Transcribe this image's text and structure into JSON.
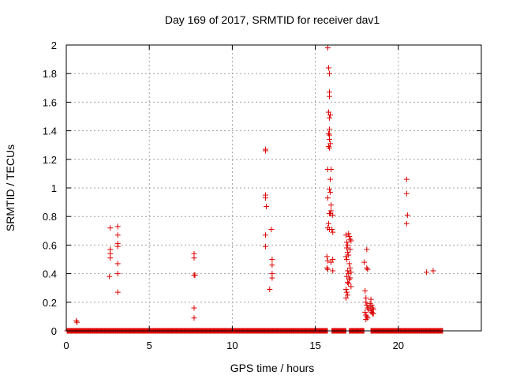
{
  "chart_data": {
    "type": "scatter",
    "title": "Day 169 of 2017, SRMTID for receiver dav1",
    "xlabel": "GPS time / hours",
    "ylabel": "SRMTID / TECUs",
    "xlim": [
      0,
      25
    ],
    "ylim": [
      0,
      2
    ],
    "xticks": [
      0,
      5,
      10,
      15,
      20
    ],
    "xtick_labels": [
      "0",
      "5",
      "10",
      "15",
      "20"
    ],
    "yticks": [
      0,
      0.2,
      0.4,
      0.6,
      0.8,
      1,
      1.2,
      1.4,
      1.6,
      1.8,
      2
    ],
    "ytick_labels": [
      "0",
      "0.2",
      "0.4",
      "0.6",
      "0.8",
      "1",
      "1.2",
      "1.4",
      "1.6",
      "1.8",
      "2"
    ],
    "grid": true,
    "marker": "+",
    "marker_color": "#dd0000",
    "baseline_segments": [
      [
        0.05,
        15.75
      ],
      [
        16.0,
        16.85
      ],
      [
        17.05,
        17.95
      ],
      [
        18.35,
        22.7
      ]
    ],
    "baseline_step": 0.04,
    "points": [
      [
        0.6,
        0.07
      ],
      [
        0.65,
        0.06
      ],
      [
        2.65,
        0.72
      ],
      [
        2.65,
        0.57
      ],
      [
        2.65,
        0.54
      ],
      [
        2.65,
        0.51
      ],
      [
        2.6,
        0.38
      ],
      [
        3.1,
        0.73
      ],
      [
        3.1,
        0.67
      ],
      [
        3.1,
        0.61
      ],
      [
        3.1,
        0.59
      ],
      [
        3.1,
        0.47
      ],
      [
        3.1,
        0.4
      ],
      [
        3.1,
        0.27
      ],
      [
        7.7,
        0.54
      ],
      [
        7.7,
        0.51
      ],
      [
        7.7,
        0.39
      ],
      [
        7.75,
        0.39
      ],
      [
        7.7,
        0.16
      ],
      [
        7.7,
        0.09
      ],
      [
        12.0,
        1.27
      ],
      [
        12.0,
        1.26
      ],
      [
        12.0,
        0.95
      ],
      [
        12.0,
        0.93
      ],
      [
        12.05,
        0.87
      ],
      [
        12.0,
        0.67
      ],
      [
        12.0,
        0.59
      ],
      [
        12.35,
        0.71
      ],
      [
        12.4,
        0.5
      ],
      [
        12.4,
        0.46
      ],
      [
        12.4,
        0.4
      ],
      [
        12.4,
        0.37
      ],
      [
        12.25,
        0.29
      ],
      [
        15.75,
        1.98
      ],
      [
        15.8,
        1.84
      ],
      [
        15.85,
        1.8
      ],
      [
        15.85,
        1.67
      ],
      [
        15.85,
        1.64
      ],
      [
        15.8,
        1.53
      ],
      [
        15.9,
        1.51
      ],
      [
        15.85,
        1.49
      ],
      [
        15.85,
        1.41
      ],
      [
        15.8,
        1.38
      ],
      [
        15.85,
        1.37
      ],
      [
        15.85,
        1.34
      ],
      [
        15.9,
        1.31
      ],
      [
        15.8,
        1.29
      ],
      [
        15.85,
        1.28
      ],
      [
        15.75,
        1.13
      ],
      [
        15.95,
        1.13
      ],
      [
        15.9,
        1.06
      ],
      [
        15.85,
        0.99
      ],
      [
        15.9,
        0.97
      ],
      [
        15.75,
        0.93
      ],
      [
        15.95,
        0.88
      ],
      [
        15.95,
        0.84
      ],
      [
        15.9,
        0.82
      ],
      [
        15.85,
        0.82
      ],
      [
        16.05,
        0.81
      ],
      [
        15.8,
        0.75
      ],
      [
        15.75,
        0.72
      ],
      [
        15.85,
        0.71
      ],
      [
        16.0,
        0.71
      ],
      [
        16.05,
        0.69
      ],
      [
        15.7,
        0.52
      ],
      [
        15.75,
        0.49
      ],
      [
        15.95,
        0.48
      ],
      [
        16.05,
        0.5
      ],
      [
        15.7,
        0.44
      ],
      [
        15.75,
        0.43
      ],
      [
        16.05,
        0.42
      ],
      [
        16.85,
        0.67
      ],
      [
        16.9,
        0.62
      ],
      [
        16.95,
        0.6
      ],
      [
        17.0,
        0.68
      ],
      [
        17.05,
        0.66
      ],
      [
        17.1,
        0.64
      ],
      [
        17.15,
        0.63
      ],
      [
        16.9,
        0.58
      ],
      [
        17.1,
        0.57
      ],
      [
        16.95,
        0.55
      ],
      [
        17.0,
        0.53
      ],
      [
        16.85,
        0.52
      ],
      [
        16.9,
        0.5
      ],
      [
        17.05,
        0.47
      ],
      [
        17.1,
        0.44
      ],
      [
        16.95,
        0.42
      ],
      [
        17.0,
        0.4
      ],
      [
        16.9,
        0.38
      ],
      [
        17.05,
        0.36
      ],
      [
        16.95,
        0.34
      ],
      [
        17.0,
        0.33
      ],
      [
        17.15,
        0.31
      ],
      [
        16.85,
        0.29
      ],
      [
        16.9,
        0.27
      ],
      [
        16.95,
        0.25
      ],
      [
        16.85,
        0.23
      ],
      [
        17.1,
        0.37
      ],
      [
        17.15,
        0.41
      ],
      [
        17.95,
        0.48
      ],
      [
        18.1,
        0.57
      ],
      [
        18.1,
        0.44
      ],
      [
        18.15,
        0.43
      ],
      [
        18.0,
        0.28
      ],
      [
        18.05,
        0.23
      ],
      [
        18.05,
        0.2
      ],
      [
        18.1,
        0.18
      ],
      [
        18.15,
        0.16
      ],
      [
        18.2,
        0.15
      ],
      [
        18.0,
        0.13
      ],
      [
        18.05,
        0.11
      ],
      [
        18.1,
        0.1
      ],
      [
        18.15,
        0.09
      ],
      [
        18.05,
        0.08
      ],
      [
        18.35,
        0.22
      ],
      [
        18.3,
        0.19
      ],
      [
        18.4,
        0.18
      ],
      [
        18.45,
        0.16
      ],
      [
        18.5,
        0.15
      ],
      [
        18.35,
        0.14
      ],
      [
        18.4,
        0.13
      ],
      [
        18.45,
        0.12
      ],
      [
        18.5,
        0.12
      ],
      [
        18.3,
        0.17
      ],
      [
        20.5,
        1.06
      ],
      [
        20.5,
        0.96
      ],
      [
        20.55,
        0.81
      ],
      [
        20.5,
        0.75
      ],
      [
        21.7,
        0.41
      ],
      [
        22.1,
        0.42
      ]
    ]
  }
}
